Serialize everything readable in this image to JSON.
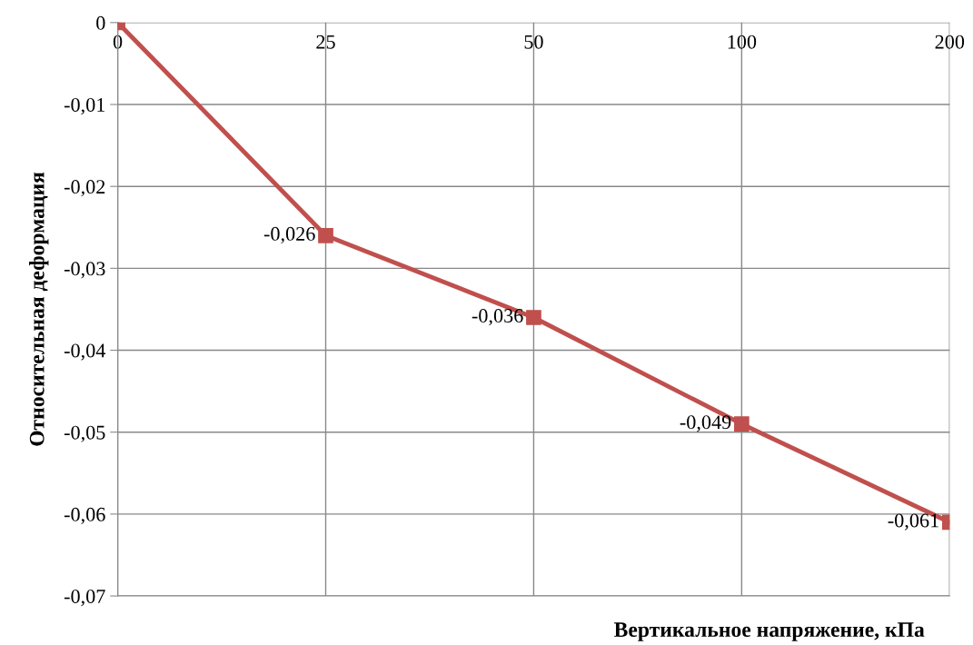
{
  "chart_data": {
    "type": "line",
    "xlabel": "Вертикальное напряжение, кПа",
    "ylabel": "Относительная деформация",
    "categories": [
      "0",
      "25",
      "50",
      "100",
      "200"
    ],
    "series": [
      {
        "color": "#c0504d",
        "values": [
          0,
          -0.026,
          -0.036,
          -0.049,
          -0.061
        ],
        "value_labels": [
          null,
          "-0,026",
          "-0,036",
          "-0,049",
          "-0,061"
        ]
      }
    ],
    "ylim": [
      -0.07,
      0
    ],
    "yticks": [
      0,
      {
        "value": -0.01,
        "label": "-0,01"
      },
      {
        "value": -0.02,
        "label": "-0,02"
      },
      {
        "value": -0.03,
        "label": "-0,03"
      },
      {
        "value": -0.04,
        "label": "-0,04"
      },
      {
        "value": -0.05,
        "label": "-0,05"
      },
      {
        "value": -0.06,
        "label": "-0,06"
      },
      {
        "value": -0.07,
        "label": "-0,07"
      }
    ],
    "grid": true,
    "marker": "square",
    "line_style": "solid"
  }
}
